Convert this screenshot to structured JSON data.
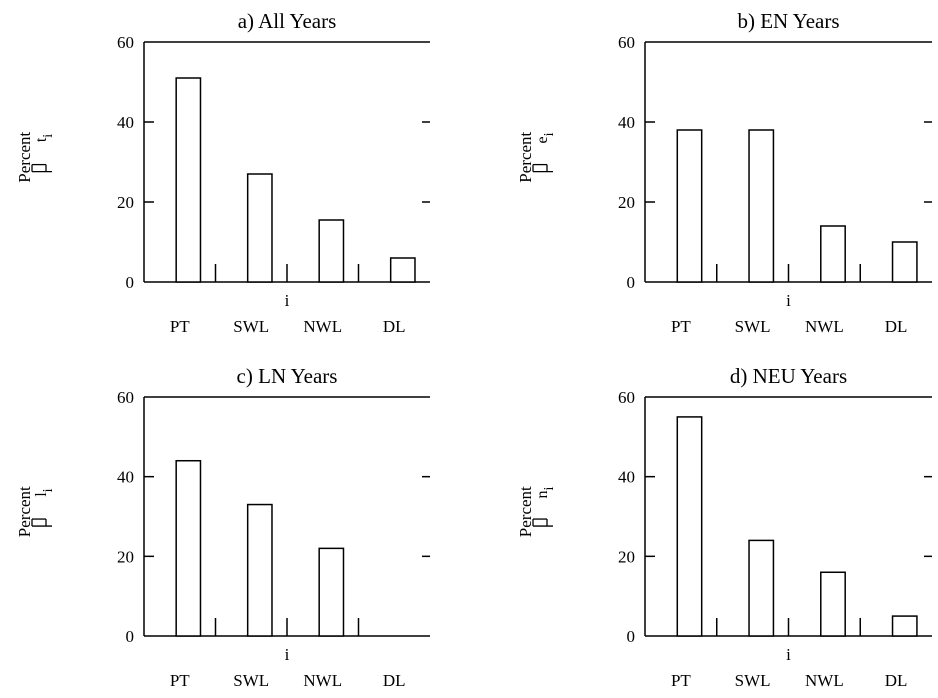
{
  "chart_data": [
    {
      "type": "bar",
      "title": "a) All Years",
      "ylabel": "Percent",
      "legend_symbol": "t",
      "legend_subscript": "i",
      "xlabel": "i",
      "categories": [
        "PT",
        "SWL",
        "NWL",
        "DL"
      ],
      "values": [
        51,
        27,
        15.5,
        6
      ],
      "ylim": [
        0,
        60
      ],
      "yticks": [
        0,
        20,
        40,
        60
      ],
      "grid": false
    },
    {
      "type": "bar",
      "title": "b) EN Years",
      "ylabel": "Percent",
      "legend_symbol": "e",
      "legend_subscript": "i",
      "xlabel": "i",
      "categories": [
        "PT",
        "SWL",
        "NWL",
        "DL"
      ],
      "values": [
        38,
        38,
        14,
        10
      ],
      "ylim": [
        0,
        60
      ],
      "yticks": [
        0,
        20,
        40,
        60
      ],
      "grid": false
    },
    {
      "type": "bar",
      "title": "c) LN Years",
      "ylabel": "Percent",
      "legend_symbol": "l",
      "legend_subscript": "i",
      "xlabel": "i",
      "categories": [
        "PT",
        "SWL",
        "NWL",
        "DL"
      ],
      "values": [
        44,
        33,
        22,
        0
      ],
      "ylim": [
        0,
        60
      ],
      "yticks": [
        0,
        20,
        40,
        60
      ],
      "grid": false
    },
    {
      "type": "bar",
      "title": "d) NEU Years",
      "ylabel": "Percent",
      "legend_symbol": "n",
      "legend_subscript": "i",
      "xlabel": "i",
      "categories": [
        "PT",
        "SWL",
        "NWL",
        "DL"
      ],
      "values": [
        55,
        24,
        16,
        5
      ],
      "ylim": [
        0,
        60
      ],
      "yticks": [
        0,
        20,
        40,
        60
      ],
      "grid": false
    }
  ]
}
